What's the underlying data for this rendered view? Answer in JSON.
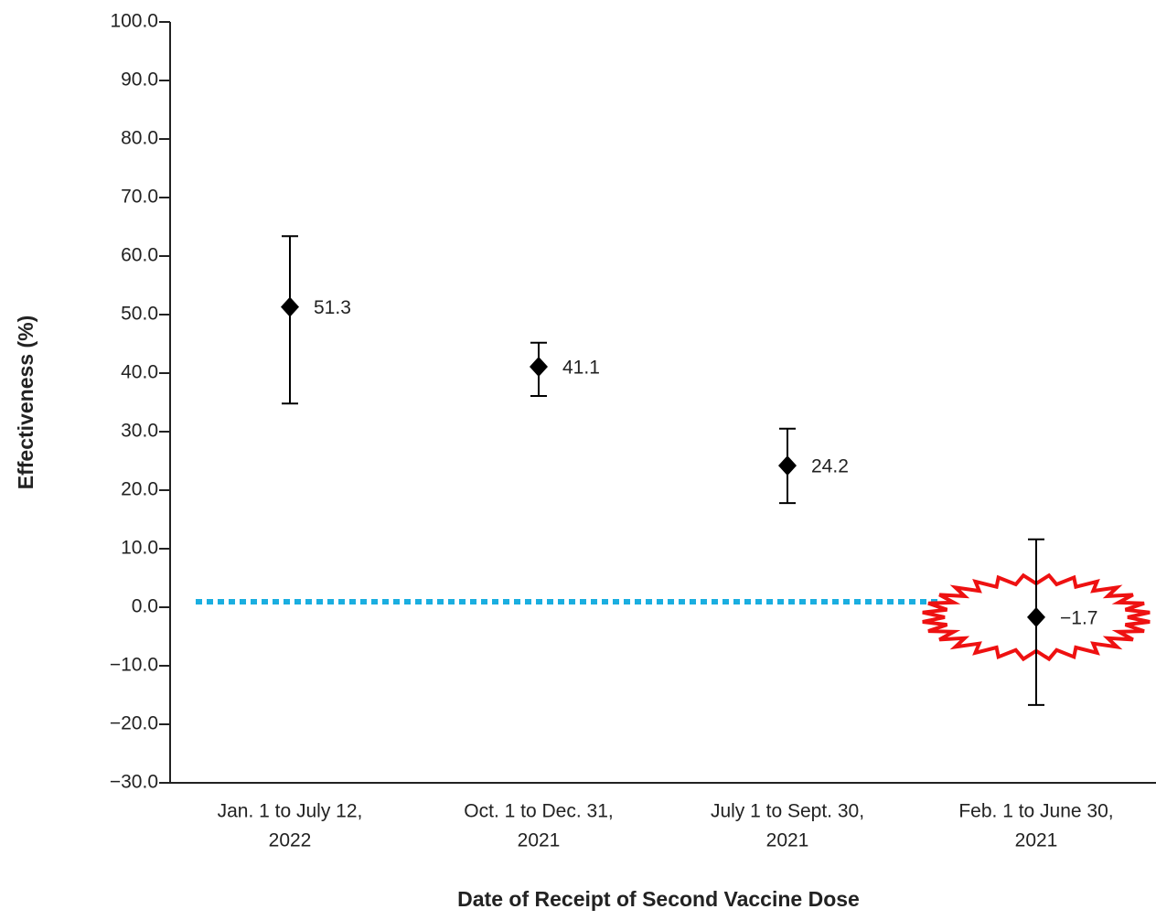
{
  "chart_data": {
    "type": "errorbar",
    "x_label": "Date of Receipt of Second Vaccine Dose",
    "y_label": "Effectiveness (%)",
    "categories": [
      [
        "Jan. 1 to July 12,",
        "2022"
      ],
      [
        "Oct. 1 to Dec. 31,",
        "2021"
      ],
      [
        "July 1 to Sept. 30,",
        "2021"
      ],
      [
        "Feb. 1 to June 30,",
        "2021"
      ]
    ],
    "series": [
      {
        "color": "#000000",
        "values": [
          51.3,
          41.1,
          24.2,
          -1.7
        ],
        "value_labels": [
          "51.3",
          "41.1",
          "24.2",
          "−1.7"
        ],
        "lower": [
          34.8,
          36.1,
          17.8,
          -16.7
        ],
        "upper": [
          63.4,
          45.2,
          30.5,
          11.6
        ]
      }
    ],
    "ylim": [
      -30,
      100
    ],
    "yticks": [
      {
        "value": -30,
        "label": "−30.0"
      },
      {
        "value": -20,
        "label": "−20.0"
      },
      {
        "value": -10,
        "label": "−10.0"
      },
      {
        "value": 0,
        "label": "0.0"
      },
      {
        "value": 10,
        "label": "10.0"
      },
      {
        "value": 20,
        "label": "20.0"
      },
      {
        "value": 30,
        "label": "30.0"
      },
      {
        "value": 40,
        "label": "40.0"
      },
      {
        "value": 50,
        "label": "50.0"
      },
      {
        "value": 60,
        "label": "60.0"
      },
      {
        "value": 70,
        "label": "70.0"
      },
      {
        "value": 80,
        "label": "80.0"
      },
      {
        "value": 90,
        "label": "90.0"
      },
      {
        "value": 100,
        "label": "100.0"
      }
    ],
    "reference_line": {
      "value": 0,
      "color": "#1aaee0"
    },
    "highlight_color": "#ee1111"
  }
}
